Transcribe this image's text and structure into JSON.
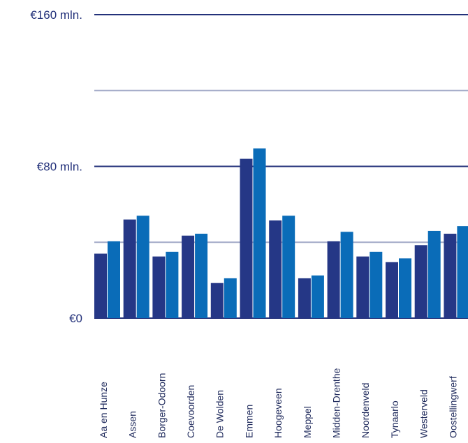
{
  "chart_data": {
    "type": "bar",
    "categories": [
      "Aa en Hunze",
      "Assen",
      "Borger-Odoorn",
      "Coevoorden",
      "De Wolden",
      "Emmen",
      "Hoogeveen",
      "Meppel",
      "Midden-Drenthe",
      "Noordenveld",
      "Tynaarlo",
      "Westerveld",
      "Oostellingwerf"
    ],
    "series": [
      {
        "values": [
          34,
          52,
          32.5,
          43.5,
          18.5,
          84,
          51.5,
          21,
          40.5,
          32.5,
          29.5,
          38.5,
          44.5
        ]
      },
      {
        "values": [
          40.5,
          54,
          35,
          44.5,
          21,
          89.5,
          54,
          22.5,
          45.5,
          35,
          31.5,
          46,
          48.5
        ]
      }
    ],
    "y_ticks": [
      {
        "value": 0,
        "label": "€0"
      },
      {
        "value": 80,
        "label": "€80 mln."
      },
      {
        "value": 160,
        "label": "€160 mln."
      }
    ],
    "gridlines": [
      40,
      80,
      120,
      160
    ],
    "ylim": [
      0,
      160
    ],
    "grid": true,
    "legend": "none",
    "title": "",
    "xlabel": "",
    "ylabel": "",
    "colors": {
      "series": [
        "#253786",
        "#0a6cb8"
      ],
      "major_grid": "#23317a",
      "minor_grid": "#a3aac8",
      "text": "#23317a"
    }
  }
}
